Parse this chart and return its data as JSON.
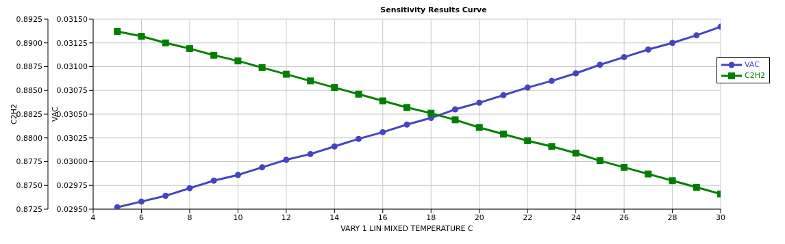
{
  "chart_data": {
    "type": "line",
    "title": "Sensitivity Results Curve",
    "xlabel": "VARY   1 LIN MIXED TEMPERATURE C",
    "ylabel": "VAC",
    "y2label": "C2H2",
    "x": [
      5,
      6,
      7,
      8,
      9,
      10,
      11,
      12,
      13,
      14,
      15,
      16,
      17,
      18,
      19,
      20,
      21,
      22,
      23,
      24,
      25,
      26,
      27,
      28,
      29,
      30
    ],
    "series": [
      {
        "name": "VAC",
        "color": "#4444c4",
        "marker": "circle",
        "values": [
          0.02952,
          0.02958,
          0.02964,
          0.02972,
          0.0298,
          0.02986,
          0.02994,
          0.03002,
          0.03008,
          0.03016,
          0.03024,
          0.03031,
          0.03039,
          0.03046,
          0.03055,
          0.03062,
          0.0307,
          0.03078,
          0.03085,
          0.03093,
          0.03102,
          0.0311,
          0.03118,
          0.03125,
          0.03133,
          0.03142
        ]
      },
      {
        "name": "C2H2",
        "color": "#008000",
        "marker": "square",
        "axis": "y2",
        "values": [
          0.8912,
          0.8907,
          0.89,
          0.8894,
          0.8887,
          0.8881,
          0.8874,
          0.8867,
          0.886,
          0.8853,
          0.8846,
          0.8839,
          0.8832,
          0.8826,
          0.8819,
          0.8811,
          0.8804,
          0.8797,
          0.8791,
          0.8784,
          0.8776,
          0.8769,
          0.8762,
          0.8755,
          0.8748,
          0.8741
        ]
      }
    ],
    "xlim": [
      4,
      30
    ],
    "xticks": [
      4,
      6,
      8,
      10,
      12,
      14,
      16,
      18,
      20,
      22,
      24,
      26,
      28,
      30
    ],
    "ylim": [
      0.0295,
      0.0315
    ],
    "yticks": [
      {
        "value": 0.0295,
        "label": "0.02950"
      },
      {
        "value": 0.02975,
        "label": "0.02975"
      },
      {
        "value": 0.03,
        "label": "0.03000"
      },
      {
        "value": 0.03025,
        "label": "0.03025"
      },
      {
        "value": 0.0305,
        "label": "0.03050"
      },
      {
        "value": 0.03075,
        "label": "0.03075"
      },
      {
        "value": 0.031,
        "label": "0.03100"
      },
      {
        "value": 0.03125,
        "label": "0.03125"
      },
      {
        "value": 0.0315,
        "label": "0.03150"
      }
    ],
    "y2lim": [
      0.8725,
      0.8925
    ],
    "y2ticks": [
      0.8725,
      {
        "value": 0.875,
        "label": "0.8750"
      },
      0.8775,
      {
        "value": 0.88,
        "label": "0.8800"
      },
      0.8825,
      {
        "value": 0.885,
        "label": "0.8850"
      },
      0.8875,
      {
        "value": 0.89,
        "label": "0.8900"
      },
      0.8925
    ],
    "grid": true,
    "legend": "top right",
    "line_style": "solid"
  }
}
